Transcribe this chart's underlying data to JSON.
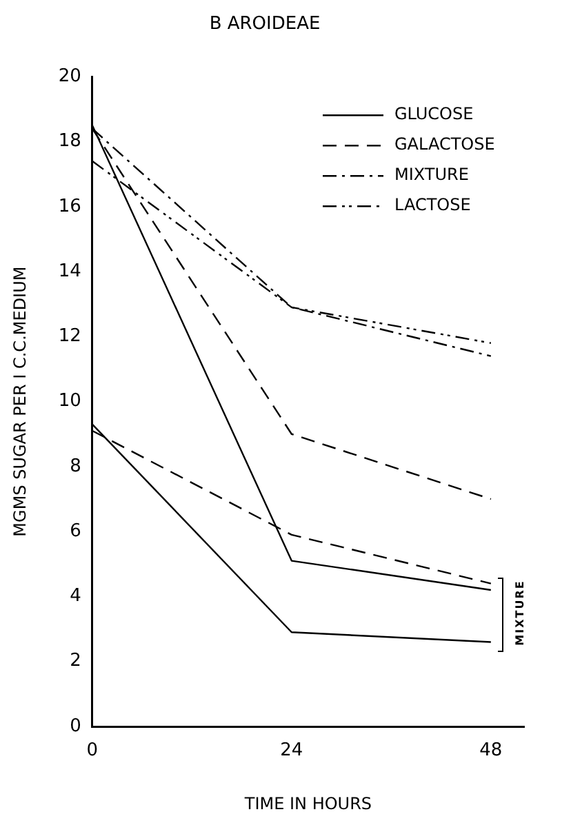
{
  "chart_data": {
    "type": "line",
    "title": "B AROIDEAE",
    "xlabel": "TIME IN HOURS",
    "ylabel": "MGMS SUGAR PER I C.C.MEDIUM",
    "x": [
      0,
      24,
      48
    ],
    "xlim": [
      0,
      52
    ],
    "xticks": [
      0,
      24,
      48
    ],
    "ylim": [
      0,
      20
    ],
    "yticks": [
      0,
      2,
      4,
      6,
      8,
      10,
      12,
      14,
      16,
      18,
      20
    ],
    "grid": false,
    "legend": "top right",
    "marker": "none",
    "series": [
      {
        "name": "GLUCOSE",
        "color": "#000000",
        "line_style": "solid",
        "values": [
          18.5,
          5.1,
          4.2
        ]
      },
      {
        "color": "#000000",
        "line_style": "solid",
        "values": [
          9.3,
          2.9,
          2.6
        ]
      },
      {
        "name": "GALACTOSE",
        "color": "#000000",
        "line_style": "dashed",
        "values": [
          18.4,
          9.0,
          7.0
        ]
      },
      {
        "color": "#000000",
        "line_style": "dashed",
        "values": [
          9.1,
          5.9,
          4.4
        ]
      },
      {
        "name": "MIXTURE",
        "color": "#000000",
        "line_style": "dashdot",
        "values": [
          18.4,
          12.9,
          11.4
        ]
      },
      {
        "name": "LACTOSE",
        "color": "#000000",
        "line_style": "dashdotdot",
        "values": [
          17.4,
          12.9,
          11.8
        ]
      }
    ],
    "annotations": [
      "MIXTURE"
    ]
  }
}
